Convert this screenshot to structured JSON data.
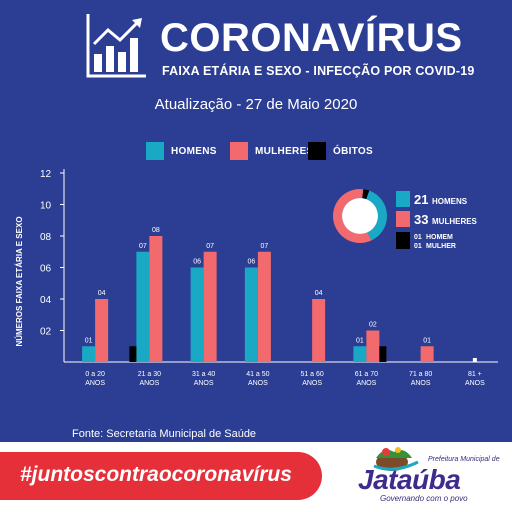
{
  "header": {
    "title": "CORONAVÍRUS",
    "subtitle": "FAIXA ETÁRIA E SEXO - INFECÇÃO POR COVID-19",
    "update": "Atualização - 27 de Maio 2020",
    "icon": "bar-chart-growth-icon"
  },
  "legend": [
    {
      "label": "HOMENS",
      "color": "#1aa9c5"
    },
    {
      "label": "MULHERES",
      "color": "#f26a6e"
    },
    {
      "label": "ÓBITOS",
      "color": "#000000"
    }
  ],
  "chart_data": {
    "type": "bar",
    "ylabel": "NÚMEROS FAIXA ETÁRIA E SEXO",
    "ylim": [
      0,
      12
    ],
    "yticks": [
      "02",
      "04",
      "06",
      "08",
      "10",
      "12"
    ],
    "categories": [
      [
        "0 a 20",
        "ANOS"
      ],
      [
        "21 a 30",
        "ANOS"
      ],
      [
        "31 a 40",
        "ANOS"
      ],
      [
        "41 a 50",
        "ANOS"
      ],
      [
        "51 a 60",
        "ANOS"
      ],
      [
        "61 a 70",
        "ANOS"
      ],
      [
        "71 a 80",
        "ANOS"
      ],
      [
        "81 +",
        "ANOS"
      ]
    ],
    "series": [
      {
        "name": "HOMENS",
        "color": "#1aa9c5",
        "values": [
          1,
          7,
          6,
          6,
          0,
          1,
          0,
          0
        ],
        "labels": [
          "01",
          "07",
          "06",
          "06",
          "",
          "01",
          "",
          ""
        ]
      },
      {
        "name": "MULHERES",
        "color": "#f26a6e",
        "values": [
          4,
          8,
          7,
          7,
          4,
          2,
          1,
          0
        ],
        "labels": [
          "04",
          "08",
          "07",
          "07",
          "04",
          "02",
          "01",
          ""
        ]
      },
      {
        "name": "ÓBITOS",
        "color": "#000000",
        "values": [
          0,
          1,
          0,
          0,
          0,
          1,
          0,
          0
        ],
        "labels": [
          "",
          "",
          "",
          "",
          "",
          "",
          "",
          ""
        ]
      }
    ],
    "donut": {
      "total_color": "#1aa9c5",
      "slices": [
        {
          "name": "HOMENS",
          "value": 21,
          "color": "#1aa9c5"
        },
        {
          "name": "MULHERES",
          "value": 33,
          "color": "#f26a6e"
        },
        {
          "name": "ÓBITOS",
          "value": 2,
          "color": "#000000"
        }
      ],
      "legend": [
        {
          "number": "21",
          "label": "HOMENS",
          "color": "#1aa9c5",
          "big": true
        },
        {
          "number": "33",
          "label": "MULHERES",
          "color": "#f26a6e",
          "big": true
        },
        {
          "number": "01",
          "label": "HOMEM",
          "color": "#000000",
          "big": false
        },
        {
          "number": "01",
          "label": "MULHER",
          "color": "#000000",
          "big": false
        }
      ]
    }
  },
  "source": "Fonte: Secretaria Municipal de Saúde",
  "footer": {
    "hashtag": "#juntoscontraocoronavírus",
    "city_prefix": "Prefeitura Municipal de",
    "city_name": "Jataúba",
    "city_tagline": "Governando com o povo"
  }
}
